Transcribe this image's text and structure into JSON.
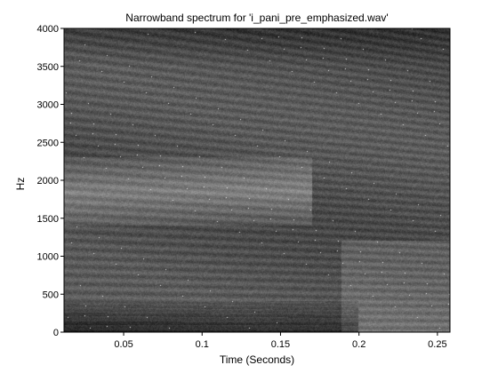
{
  "chart_data": {
    "type": "heatmap",
    "title": "Narrowband spectrum for 'i_pani_pre_emphasized.wav'",
    "xlabel": "Time (Seconds)",
    "ylabel": "Hz",
    "xlim": [
      0.012,
      0.258
    ],
    "ylim": [
      0,
      4000
    ],
    "x_ticks": [
      0.05,
      0.1,
      0.15,
      0.2,
      0.25
    ],
    "x_tick_labels": [
      "0.05",
      "0.1",
      "0.15",
      "0.2",
      "0.25"
    ],
    "y_ticks": [
      0,
      500,
      1000,
      1500,
      2000,
      2500,
      3000,
      3500,
      4000
    ],
    "y_tick_labels": [
      "0",
      "500",
      "1000",
      "1500",
      "2000",
      "2500",
      "3000",
      "3500",
      "4000"
    ],
    "colormap": "gray",
    "grid": false,
    "legend": "none",
    "harmonic_spacing_hz_start": 115,
    "harmonic_spacing_hz_end": 95,
    "bright_region": {
      "freq_range_hz": [
        1400,
        2300
      ],
      "time_range_s": [
        0.012,
        0.17
      ]
    },
    "dark_region_low_freq": {
      "freq_range_hz": [
        0,
        400
      ],
      "time_range_s": [
        0.012,
        0.2
      ]
    }
  },
  "colors": {
    "background": "#ffffff",
    "axis": "#000000"
  }
}
